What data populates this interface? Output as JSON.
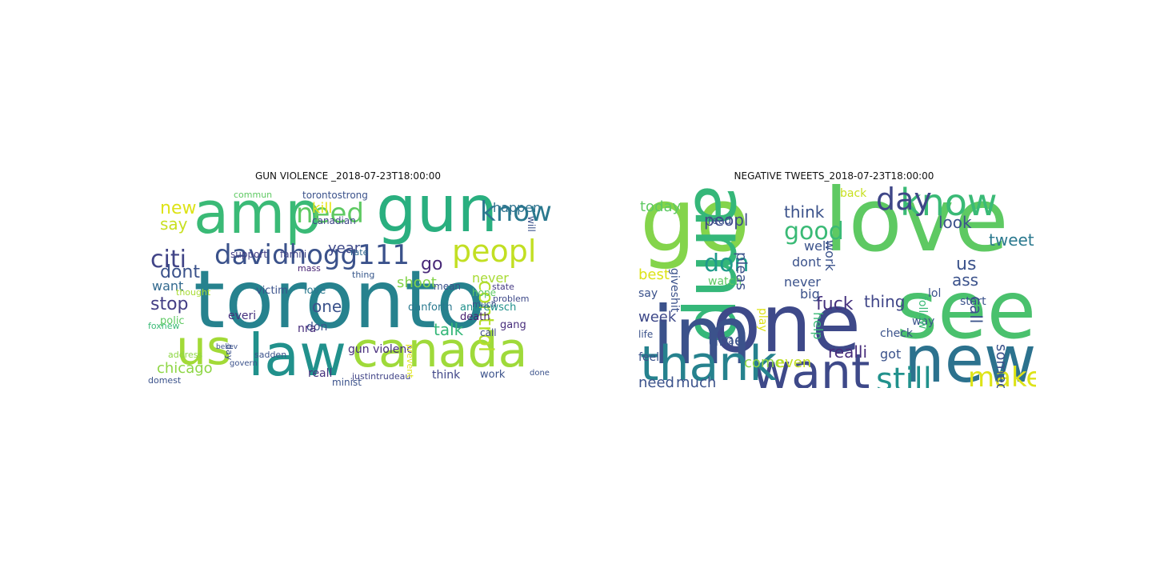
{
  "figure": {
    "panels": [
      {
        "title": "GUN VIOLENCE _2018-07-23T18:00:00",
        "words": [
          {
            "text": "toronto",
            "color": "#26828e"
          },
          {
            "text": "amp",
            "color": "#3aba76"
          },
          {
            "text": "gun",
            "color": "#29af7f"
          },
          {
            "text": "us",
            "color": "#a2da37"
          },
          {
            "text": "law",
            "color": "#21918c"
          },
          {
            "text": "canada",
            "color": "#9fda3a"
          },
          {
            "text": "davidhogg111",
            "color": "#3b528b"
          },
          {
            "text": "citi",
            "color": "#414487"
          },
          {
            "text": "need",
            "color": "#5ec962"
          },
          {
            "text": "peopl",
            "color": "#c2df23"
          },
          {
            "text": "know",
            "color": "#2a788e"
          },
          {
            "text": "new",
            "color": "#dde318"
          },
          {
            "text": "say",
            "color": "#c8e020"
          },
          {
            "text": "dont",
            "color": "#3b528b"
          },
          {
            "text": "stop",
            "color": "#433e85"
          },
          {
            "text": "want",
            "color": "#31688e"
          },
          {
            "text": "polic",
            "color": "#5ec962"
          },
          {
            "text": "chicago",
            "color": "#8ed645"
          },
          {
            "text": "kill",
            "color": "#e7e419"
          },
          {
            "text": "year",
            "color": "#3e4989"
          },
          {
            "text": "go",
            "color": "#482878"
          },
          {
            "text": "happen",
            "color": "#2c728e"
          },
          {
            "text": "control",
            "color": "#b5de2b"
          },
          {
            "text": "shoot",
            "color": "#84d44b"
          },
          {
            "text": "never",
            "color": "#a8db34"
          },
          {
            "text": "talk",
            "color": "#35b779"
          },
          {
            "text": "one",
            "color": "#3b528b"
          },
          {
            "text": "reall",
            "color": "#46327e"
          },
          {
            "text": "gun violenc",
            "color": "#472d7b"
          },
          {
            "text": "canadian",
            "color": "#3f4788"
          },
          {
            "text": "support",
            "color": "#433e85"
          },
          {
            "text": "famili",
            "color": "#414487"
          },
          {
            "text": "mass",
            "color": "#482475"
          },
          {
            "text": "thing",
            "color": "#38588c"
          },
          {
            "text": "danforth",
            "color": "#2a788e"
          },
          {
            "text": "andrewsch",
            "color": "#21918c"
          },
          {
            "text": "death",
            "color": "#481f70"
          },
          {
            "text": "problem",
            "color": "#3e4989"
          },
          {
            "text": "rate",
            "color": "#31688e"
          },
          {
            "text": "victim",
            "color": "#3b528b"
          },
          {
            "text": "love",
            "color": "#2a788e"
          },
          {
            "text": "hope",
            "color": "#5ec962"
          },
          {
            "text": "much",
            "color": "#3b528b"
          },
          {
            "text": "gang",
            "color": "#472d7b"
          },
          {
            "text": "state",
            "color": "#443983"
          },
          {
            "text": "work",
            "color": "#3b528b"
          },
          {
            "text": "think",
            "color": "#404688"
          },
          {
            "text": "call",
            "color": "#3e4989"
          },
          {
            "text": "minist",
            "color": "#3b528b"
          },
          {
            "text": "domest",
            "color": "#3b528b"
          },
          {
            "text": "justintrudeau",
            "color": "#414487"
          },
          {
            "text": "foxnew",
            "color": "#3aba76"
          },
          {
            "text": "torontostrong",
            "color": "#3b528b"
          },
          {
            "text": "commun",
            "color": "#5ec962"
          },
          {
            "text": "thought",
            "color": "#a8db34"
          },
          {
            "text": "address",
            "color": "#8ed645"
          },
          {
            "text": "believ",
            "color": "#3b528b"
          },
          {
            "text": "everi",
            "color": "#46327e"
          },
          {
            "text": "don",
            "color": "#3b528b"
          },
          {
            "text": "nra",
            "color": "#472d7b"
          },
          {
            "text": "sadden",
            "color": "#3b528b"
          },
          {
            "text": "day",
            "color": "#3b528b"
          },
          {
            "text": "done",
            "color": "#3b528b"
          },
          {
            "text": "mean",
            "color": "#3b528b"
          },
          {
            "text": "prevent",
            "color": "#dde318"
          },
          {
            "text": "govern",
            "color": "#3b528b"
          },
          {
            "text": "will",
            "color": "#3b528b"
          }
        ]
      },
      {
        "title": "NEGATIVE TWEETS_2018-07-23T18:00:00",
        "words": [
          {
            "text": "love",
            "color": "#5ec962"
          },
          {
            "text": "go",
            "color": "#84d44b"
          },
          {
            "text": "amp",
            "color": "#35b779"
          },
          {
            "text": "one",
            "color": "#3e4989"
          },
          {
            "text": "see",
            "color": "#4ac16d"
          },
          {
            "text": "im",
            "color": "#3b528b"
          },
          {
            "text": "new",
            "color": "#2c728e"
          },
          {
            "text": "want",
            "color": "#3e4989"
          },
          {
            "text": "thank",
            "color": "#26828e"
          },
          {
            "text": "know",
            "color": "#3aba76"
          },
          {
            "text": "day",
            "color": "#3f4788"
          },
          {
            "text": "good",
            "color": "#3aba76"
          },
          {
            "text": "still",
            "color": "#21918c"
          },
          {
            "text": "make",
            "color": "#dde318"
          },
          {
            "text": "don",
            "color": "#1f9a8a"
          },
          {
            "text": "peopl",
            "color": "#3e4989"
          },
          {
            "text": "today",
            "color": "#5ec962"
          },
          {
            "text": "think",
            "color": "#3b528b"
          },
          {
            "text": "look",
            "color": "#3b528b"
          },
          {
            "text": "tweet",
            "color": "#2a788e"
          },
          {
            "text": "us",
            "color": "#3b528b"
          },
          {
            "text": "ass",
            "color": "#3b528b"
          },
          {
            "text": "call",
            "color": "#3b528b"
          },
          {
            "text": "fuck",
            "color": "#46327e"
          },
          {
            "text": "thing",
            "color": "#404688"
          },
          {
            "text": "realli",
            "color": "#472d7b"
          },
          {
            "text": "got",
            "color": "#3b528b"
          },
          {
            "text": "time",
            "color": "#3b528b"
          },
          {
            "text": "need",
            "color": "#3b528b"
          },
          {
            "text": "much",
            "color": "#3b528b"
          },
          {
            "text": "come",
            "color": "#8ed645"
          },
          {
            "text": "even",
            "color": "#c2df23"
          },
          {
            "text": "week",
            "color": "#3e4989"
          },
          {
            "text": "best",
            "color": "#dde318"
          },
          {
            "text": "watch",
            "color": "#5ec962"
          },
          {
            "text": "never",
            "color": "#3b528b"
          },
          {
            "text": "dont",
            "color": "#3b528b"
          },
          {
            "text": "well",
            "color": "#3b528b"
          },
          {
            "text": "work",
            "color": "#3b528b"
          },
          {
            "text": "help",
            "color": "#3aba76"
          },
          {
            "text": "pleas",
            "color": "#3b528b"
          },
          {
            "text": "big",
            "color": "#3b528b"
          },
          {
            "text": "way",
            "color": "#3b528b"
          },
          {
            "text": "lol",
            "color": "#3b528b"
          },
          {
            "text": "back",
            "color": "#c8e020"
          },
          {
            "text": "someon",
            "color": "#3b528b"
          },
          {
            "text": "follow",
            "color": "#3aba76"
          },
          {
            "text": "start",
            "color": "#3b528b"
          },
          {
            "text": "check",
            "color": "#3b528b"
          },
          {
            "text": "life",
            "color": "#3b528b"
          },
          {
            "text": "feel",
            "color": "#3b528b"
          },
          {
            "text": "say",
            "color": "#3b528b"
          },
          {
            "text": "giveshit",
            "color": "#3b528b"
          },
          {
            "text": "via",
            "color": "#3b528b"
          },
          {
            "text": "read",
            "color": "#3b528b"
          },
          {
            "text": "play",
            "color": "#dde318"
          }
        ]
      }
    ]
  }
}
